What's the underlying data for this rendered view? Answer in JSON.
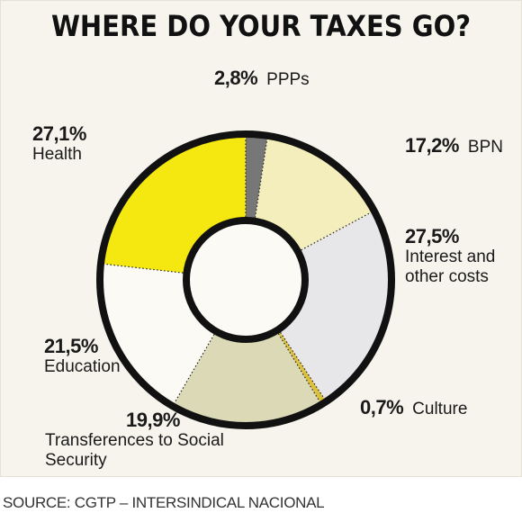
{
  "title": "WHERE DO YOUR TAXES GO?",
  "source": "SOURCE: CGTP – INTERSINDICAL NACIONAL",
  "chart_data": {
    "type": "donut",
    "title": "WHERE DO YOUR TAXES GO?",
    "unit": "%",
    "series": [
      {
        "name": "PPPs",
        "value": 2.8,
        "label": "2,8%",
        "color": "#777777"
      },
      {
        "name": "BPN",
        "value": 17.2,
        "label": "17,2%",
        "color": "#f3eebb"
      },
      {
        "name": "Interest and other costs",
        "value": 27.5,
        "label": "27,5%",
        "color": "#e7e6e8"
      },
      {
        "name": "Culture",
        "value": 0.7,
        "label": "0,7%",
        "color": "#dcc140"
      },
      {
        "name": "Transferences to Social Security",
        "value": 19.9,
        "label": "19,9%",
        "color": "#dcd9b6"
      },
      {
        "name": "Education",
        "value": 21.5,
        "label": "21,5%",
        "color": "#fbfaf4"
      },
      {
        "name": "Health",
        "value": 27.1,
        "label": "27,1%",
        "color": "#f4e810"
      }
    ],
    "labels_display": {
      "PPPs": "PPPs",
      "BPN": "BPN",
      "Interest and other costs": [
        "Interest and",
        "other costs"
      ],
      "Culture": "Culture",
      "Transferences to Social Security": "Transferences to Social Security",
      "Education": "Education",
      "Health": "Health"
    },
    "start_angle_deg": 0,
    "direction": "clockwise",
    "legend": "none"
  }
}
